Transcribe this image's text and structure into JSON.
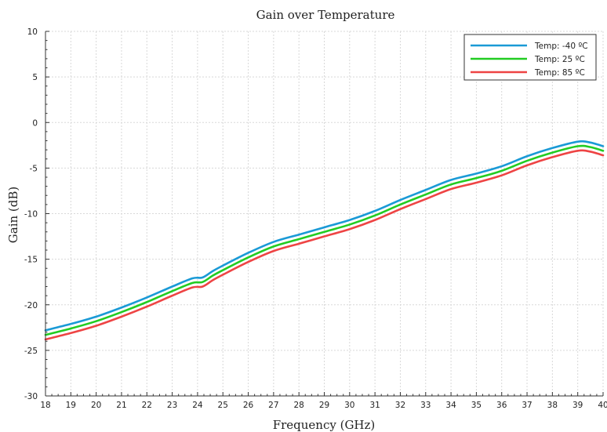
{
  "chart_data": {
    "type": "line",
    "title": "Gain over Temperature",
    "xlabel": "Frequency (GHz)",
    "ylabel": "Gain (dB)",
    "xlim": [
      18,
      40
    ],
    "ylim": [
      -30,
      10
    ],
    "xticks": [
      18,
      19,
      20,
      21,
      22,
      23,
      24,
      25,
      26,
      27,
      28,
      29,
      30,
      31,
      32,
      33,
      34,
      35,
      36,
      37,
      38,
      39,
      40
    ],
    "yticks": [
      -30,
      -25,
      -20,
      -15,
      -10,
      -5,
      0,
      5,
      10
    ],
    "grid": true,
    "legend_position": "top-right",
    "x": [
      18,
      19,
      20,
      21,
      22,
      23,
      23.8,
      24.2,
      24.6,
      25,
      26,
      27,
      28,
      29,
      30,
      31,
      32,
      33,
      34,
      35,
      36,
      37,
      38,
      39,
      39.5,
      40
    ],
    "series": [
      {
        "name": "Temp: -40 ºC",
        "color": "#1a9ad6",
        "values": [
          -22.8,
          -22.1,
          -21.3,
          -20.3,
          -19.2,
          -18.0,
          -17.1,
          -17.0,
          -16.3,
          -15.7,
          -14.3,
          -13.1,
          -12.3,
          -11.5,
          -10.7,
          -9.7,
          -8.5,
          -7.4,
          -6.3,
          -5.6,
          -4.8,
          -3.7,
          -2.8,
          -2.1,
          -2.2,
          -2.6
        ]
      },
      {
        "name": "Temp: 25 ºC",
        "color": "#22cc22",
        "values": [
          -23.3,
          -22.6,
          -21.8,
          -20.8,
          -19.7,
          -18.5,
          -17.6,
          -17.5,
          -16.8,
          -16.2,
          -14.8,
          -13.6,
          -12.8,
          -12.0,
          -11.2,
          -10.2,
          -9.0,
          -7.9,
          -6.8,
          -6.1,
          -5.3,
          -4.2,
          -3.3,
          -2.6,
          -2.7,
          -3.1
        ]
      },
      {
        "name": "Temp: 85 ºC",
        "color": "#ee4444",
        "values": [
          -23.8,
          -23.1,
          -22.3,
          -21.3,
          -20.2,
          -19.0,
          -18.1,
          -18.0,
          -17.3,
          -16.7,
          -15.3,
          -14.1,
          -13.3,
          -12.5,
          -11.7,
          -10.7,
          -9.5,
          -8.4,
          -7.3,
          -6.6,
          -5.8,
          -4.7,
          -3.8,
          -3.1,
          -3.2,
          -3.6
        ]
      }
    ]
  }
}
